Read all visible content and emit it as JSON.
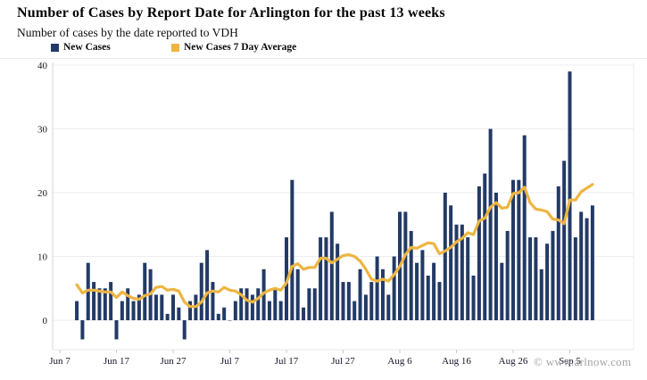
{
  "header": {
    "title": "Number of Cases by Report Date for Arlington for the past 13 weeks",
    "subtitle": "Number of cases by the date reported to VDH"
  },
  "legend": [
    {
      "label": "New Cases",
      "color": "#233a66"
    },
    {
      "label": "New Cases 7 Day Average",
      "color": "#edb542"
    }
  ],
  "watermark": "© www.arlnow.com",
  "chart_data": {
    "type": "bar",
    "title": "Number of Cases by Report Date for Arlington for the past 13 weeks",
    "subtitle": "Number of cases by the date reported to VDH",
    "xlabel": "",
    "ylabel": "",
    "x_tick_labels": [
      "Jun 7",
      "Jun 17",
      "Jun 27",
      "Jul 7",
      "Jul 17",
      "Jul 27",
      "Aug 6",
      "Aug 16",
      "Aug 26",
      "Sep 5"
    ],
    "y_ticks": [
      0,
      10,
      20,
      30,
      40
    ],
    "ylim": [
      -5,
      41
    ],
    "grid": "horizontal",
    "legend_position": "top-left",
    "series": [
      {
        "name": "New Cases",
        "type": "bar",
        "color": "#233a66",
        "values": [
          3,
          -3,
          9,
          6,
          5,
          5,
          6,
          -3,
          3,
          5,
          3,
          4,
          9,
          8,
          4,
          4,
          1,
          4,
          2,
          -3,
          3,
          4,
          9,
          11,
          6,
          1,
          2,
          0,
          3,
          5,
          5,
          4,
          5,
          8,
          3,
          5,
          3,
          13,
          22,
          8,
          2,
          5,
          5,
          13,
          13,
          17,
          12,
          6,
          6,
          3,
          8,
          4,
          6,
          10,
          8,
          4,
          10,
          17,
          17,
          14,
          9,
          11,
          7,
          9,
          6,
          20,
          18,
          15,
          15,
          13,
          7,
          21,
          23,
          30,
          20,
          9,
          14,
          22,
          22,
          29,
          13,
          13,
          8,
          12,
          14,
          21,
          25,
          39,
          13,
          17,
          16,
          18
        ]
      },
      {
        "name": "New Cases 7 Day Average",
        "type": "line",
        "color": "#edb542",
        "derived_from": "7-day trailing average of New Cases",
        "lead_in_level": 6
      }
    ]
  }
}
